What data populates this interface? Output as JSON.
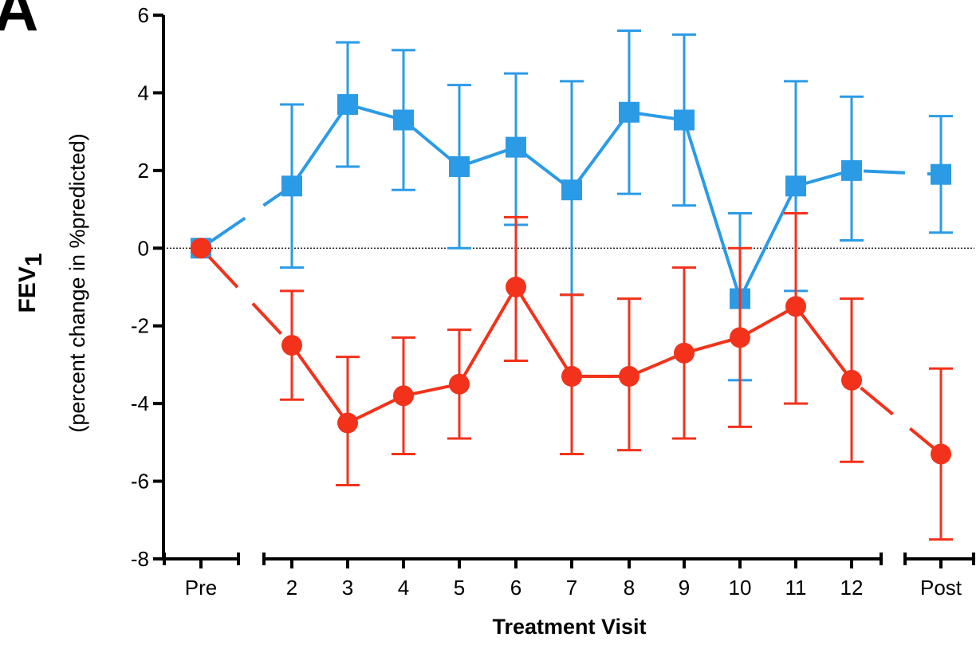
{
  "chart_data": {
    "type": "line",
    "panel_label": "A",
    "ylabel_main": "FEV",
    "ylabel_sub": "1",
    "ylabel_secondary": "(percent change in %predicted)",
    "xlabel": "Treatment Visit",
    "ylim": [
      -8,
      6
    ],
    "yticks": [
      6,
      4,
      2,
      0,
      -2,
      -4,
      -6,
      -8
    ],
    "ytick_labels": [
      "6",
      "4",
      "2",
      "0",
      "-2",
      "-4",
      "-6",
      "-8"
    ],
    "categories": [
      "Pre",
      "2",
      "3",
      "4",
      "5",
      "6",
      "7",
      "8",
      "9",
      "10",
      "11",
      "12",
      "Post"
    ],
    "axis_breaks": "after Pre and after 12",
    "reference_line": 0,
    "series": [
      {
        "marker": "square",
        "color": "#2b9be6",
        "values": [
          0.0,
          1.6,
          3.7,
          3.3,
          2.1,
          2.6,
          1.5,
          3.5,
          3.3,
          -1.3,
          1.6,
          2.0,
          1.9
        ],
        "err_low": [
          0.0,
          -0.5,
          2.1,
          1.5,
          0.0,
          0.6,
          -1.2,
          1.4,
          1.1,
          -3.4,
          -1.1,
          0.2,
          0.4
        ],
        "err_high": [
          0.0,
          3.7,
          5.3,
          5.1,
          4.2,
          4.5,
          4.3,
          5.6,
          5.5,
          0.9,
          4.3,
          3.9,
          3.4
        ]
      },
      {
        "marker": "circle",
        "color": "#f2321b",
        "values": [
          0.0,
          -2.5,
          -4.5,
          -3.8,
          -3.5,
          -1.0,
          -3.3,
          -3.3,
          -2.7,
          -2.3,
          -1.5,
          -3.4,
          -5.3
        ],
        "err_low": [
          0.0,
          -3.9,
          -6.1,
          -5.3,
          -4.9,
          -2.9,
          -5.3,
          -5.2,
          -4.9,
          -4.6,
          -4.0,
          -5.5,
          -7.5
        ],
        "err_high": [
          0.0,
          -1.1,
          -2.8,
          -2.3,
          -2.1,
          0.8,
          -1.2,
          -1.3,
          -0.5,
          0.0,
          0.9,
          -1.3,
          -3.1
        ]
      }
    ]
  }
}
